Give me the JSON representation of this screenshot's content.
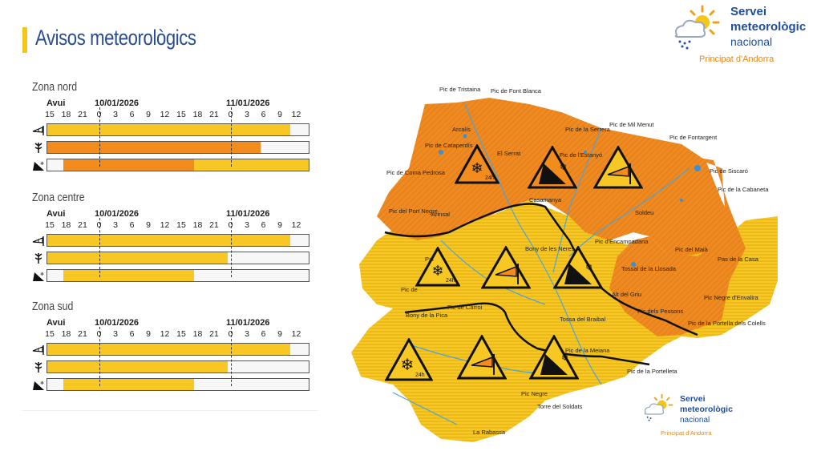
{
  "header": {
    "title": "Avisos meteorològics"
  },
  "logo": {
    "line1": "Servei",
    "line2": "meteorològic",
    "line3": "nacional",
    "line4": "Principat d'Andorra"
  },
  "labels": {
    "avui": "Avui",
    "day1": "10/01/2026",
    "day2": "11/01/2026"
  },
  "hours": [
    "15",
    "18",
    "21",
    "0",
    "3",
    "6",
    "9",
    "12",
    "15",
    "18",
    "21",
    "0",
    "3",
    "6",
    "9",
    "12"
  ],
  "zones": [
    {
      "title": "Zona nord",
      "rows": [
        {
          "icon": "wind-icon",
          "segments": [
            {
              "from": 0.0,
              "to": 0.93,
              "level": "yellow"
            }
          ]
        },
        {
          "icon": "snow-tree-icon",
          "segments": [
            {
              "from": 0.0,
              "to": 0.815,
              "level": "orange"
            }
          ]
        },
        {
          "icon": "avalanche-icon",
          "segments": [
            {
              "from": 0.06,
              "to": 0.56,
              "level": "orange"
            },
            {
              "from": 0.56,
              "to": 1.0,
              "level": "yellow"
            }
          ]
        }
      ]
    },
    {
      "title": "Zona centre",
      "rows": [
        {
          "icon": "wind-icon",
          "segments": [
            {
              "from": 0.0,
              "to": 0.93,
              "level": "yellow"
            }
          ]
        },
        {
          "icon": "snow-tree-icon",
          "segments": [
            {
              "from": 0.0,
              "to": 0.69,
              "level": "yellow"
            }
          ]
        },
        {
          "icon": "avalanche-icon",
          "segments": [
            {
              "from": 0.06,
              "to": 0.56,
              "level": "yellow"
            }
          ]
        }
      ]
    },
    {
      "title": "Zona sud",
      "rows": [
        {
          "icon": "wind-icon",
          "segments": [
            {
              "from": 0.0,
              "to": 0.93,
              "level": "yellow"
            }
          ]
        },
        {
          "icon": "snow-tree-icon",
          "segments": [
            {
              "from": 0.0,
              "to": 0.69,
              "level": "yellow"
            }
          ]
        },
        {
          "icon": "avalanche-icon",
          "segments": [
            {
              "from": 0.06,
              "to": 0.56,
              "level": "yellow"
            }
          ]
        }
      ]
    }
  ],
  "colors": {
    "yellow": "#f7c823",
    "orange": "#f28c1c",
    "blue": "#1f4e9a",
    "accent": "#f5c518"
  },
  "map_labels": {
    "tristaina": "Pic de Tristaina",
    "font_blanca": "Pic de Font Blanca",
    "serrera": "Pic de la Serrera",
    "mil_menut": "Pic de Mil Menut",
    "fontargent": "Pic de Fontargent",
    "siscaro": "Pic de Siscaró",
    "cabaneta": "Pic de la Cabaneta",
    "estanyo": "Pic de l'Estanyó",
    "casamanya": "Casamanya",
    "cataperdis": "Pic de Cataperdís",
    "coma_pedrosa": "Pic de Coma Pedrosa",
    "port_negre": "Pic del Port Negre",
    "bony_neres": "Bony de les Neres",
    "encampadana": "Pic d'Encampadana",
    "tossal_llosada": "Tossal de la Llosada",
    "pic_maia": "Pic del Maià",
    "pas_casa": "Pas de la Casa",
    "alt_griu": "Alt del Griu",
    "pessons": "Pic dels Pessons",
    "negre_envalira": "Pic Negre d'Envalira",
    "portella_colells": "Pic de la Portella dels Colells",
    "pic_de": "Pic de",
    "carroi": "Pic de Carroi",
    "bony_pica": "Bony de la Pica",
    "tossa_braibal": "Tossa del Braibal",
    "meiana": "Pic de la Meiana",
    "portelleta": "Pic de la Portelleta",
    "pic_negre": "Pic Negre",
    "torre_soldats": "Torre del Soldats",
    "rabassa": "La Rabassa",
    "arcalis": "Arcalís",
    "serrat": "El Serrat",
    "arinsal": "Arinsal",
    "soldeu": "Soldeu",
    "pal": "Pal"
  }
}
